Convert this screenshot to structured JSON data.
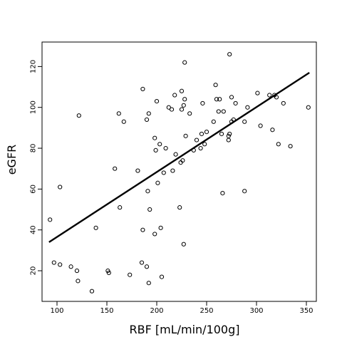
{
  "chart_data": {
    "type": "scatter",
    "xlabel": "RBF [mL/min/100g]",
    "ylabel": "eGFR",
    "xlim": [
      85,
      360
    ],
    "ylim": [
      5,
      132
    ],
    "x_ticks": [
      100,
      150,
      200,
      250,
      300,
      350
    ],
    "y_ticks": [
      20,
      40,
      60,
      80,
      100,
      120
    ],
    "grid": false,
    "marker": "open-circle",
    "colors": {
      "points": "#000000",
      "line": "#000000",
      "axes": "#000000"
    },
    "points": [
      {
        "x": 93,
        "y": 45
      },
      {
        "x": 97,
        "y": 24
      },
      {
        "x": 103,
        "y": 61
      },
      {
        "x": 103,
        "y": 23
      },
      {
        "x": 114,
        "y": 22
      },
      {
        "x": 120,
        "y": 20
      },
      {
        "x": 121,
        "y": 15
      },
      {
        "x": 122,
        "y": 96
      },
      {
        "x": 135,
        "y": 10
      },
      {
        "x": 139,
        "y": 41
      },
      {
        "x": 151,
        "y": 20
      },
      {
        "x": 152,
        "y": 19
      },
      {
        "x": 158,
        "y": 70
      },
      {
        "x": 162,
        "y": 97
      },
      {
        "x": 163,
        "y": 51
      },
      {
        "x": 167,
        "y": 93
      },
      {
        "x": 173,
        "y": 18
      },
      {
        "x": 181,
        "y": 69
      },
      {
        "x": 185,
        "y": 24
      },
      {
        "x": 186,
        "y": 109
      },
      {
        "x": 186,
        "y": 40
      },
      {
        "x": 190,
        "y": 94
      },
      {
        "x": 190,
        "y": 22
      },
      {
        "x": 191,
        "y": 59
      },
      {
        "x": 192,
        "y": 14
      },
      {
        "x": 192,
        "y": 97
      },
      {
        "x": 193,
        "y": 50
      },
      {
        "x": 198,
        "y": 85
      },
      {
        "x": 198,
        "y": 38
      },
      {
        "x": 199,
        "y": 79
      },
      {
        "x": 200,
        "y": 103
      },
      {
        "x": 201,
        "y": 63
      },
      {
        "x": 203,
        "y": 82
      },
      {
        "x": 204,
        "y": 41
      },
      {
        "x": 205,
        "y": 17
      },
      {
        "x": 207,
        "y": 68
      },
      {
        "x": 209,
        "y": 80
      },
      {
        "x": 212,
        "y": 100
      },
      {
        "x": 215,
        "y": 99
      },
      {
        "x": 216,
        "y": 69
      },
      {
        "x": 218,
        "y": 106
      },
      {
        "x": 219,
        "y": 77
      },
      {
        "x": 223,
        "y": 51
      },
      {
        "x": 224,
        "y": 73
      },
      {
        "x": 225,
        "y": 108
      },
      {
        "x": 225,
        "y": 99
      },
      {
        "x": 226,
        "y": 74
      },
      {
        "x": 227,
        "y": 33
      },
      {
        "x": 227,
        "y": 101
      },
      {
        "x": 228,
        "y": 122
      },
      {
        "x": 228,
        "y": 104
      },
      {
        "x": 229,
        "y": 86
      },
      {
        "x": 233,
        "y": 97
      },
      {
        "x": 237,
        "y": 79
      },
      {
        "x": 240,
        "y": 84
      },
      {
        "x": 244,
        "y": 80
      },
      {
        "x": 245,
        "y": 87
      },
      {
        "x": 246,
        "y": 102
      },
      {
        "x": 248,
        "y": 82
      },
      {
        "x": 250,
        "y": 88
      },
      {
        "x": 257,
        "y": 93
      },
      {
        "x": 259,
        "y": 111
      },
      {
        "x": 260,
        "y": 104
      },
      {
        "x": 262,
        "y": 98
      },
      {
        "x": 263,
        "y": 104
      },
      {
        "x": 265,
        "y": 87
      },
      {
        "x": 266,
        "y": 58
      },
      {
        "x": 267,
        "y": 98
      },
      {
        "x": 272,
        "y": 84
      },
      {
        "x": 272,
        "y": 86
      },
      {
        "x": 273,
        "y": 87
      },
      {
        "x": 273,
        "y": 126
      },
      {
        "x": 275,
        "y": 105
      },
      {
        "x": 275,
        "y": 93
      },
      {
        "x": 277,
        "y": 94
      },
      {
        "x": 279,
        "y": 102
      },
      {
        "x": 288,
        "y": 59
      },
      {
        "x": 288,
        "y": 93
      },
      {
        "x": 291,
        "y": 100
      },
      {
        "x": 301,
        "y": 107
      },
      {
        "x": 304,
        "y": 91
      },
      {
        "x": 313,
        "y": 106
      },
      {
        "x": 316,
        "y": 89
      },
      {
        "x": 318,
        "y": 106
      },
      {
        "x": 320,
        "y": 105
      },
      {
        "x": 322,
        "y": 82
      },
      {
        "x": 327,
        "y": 102
      },
      {
        "x": 334,
        "y": 81
      },
      {
        "x": 352,
        "y": 100
      }
    ],
    "trend_line": {
      "x": [
        92,
        353
      ],
      "y": [
        34,
        117
      ]
    }
  }
}
